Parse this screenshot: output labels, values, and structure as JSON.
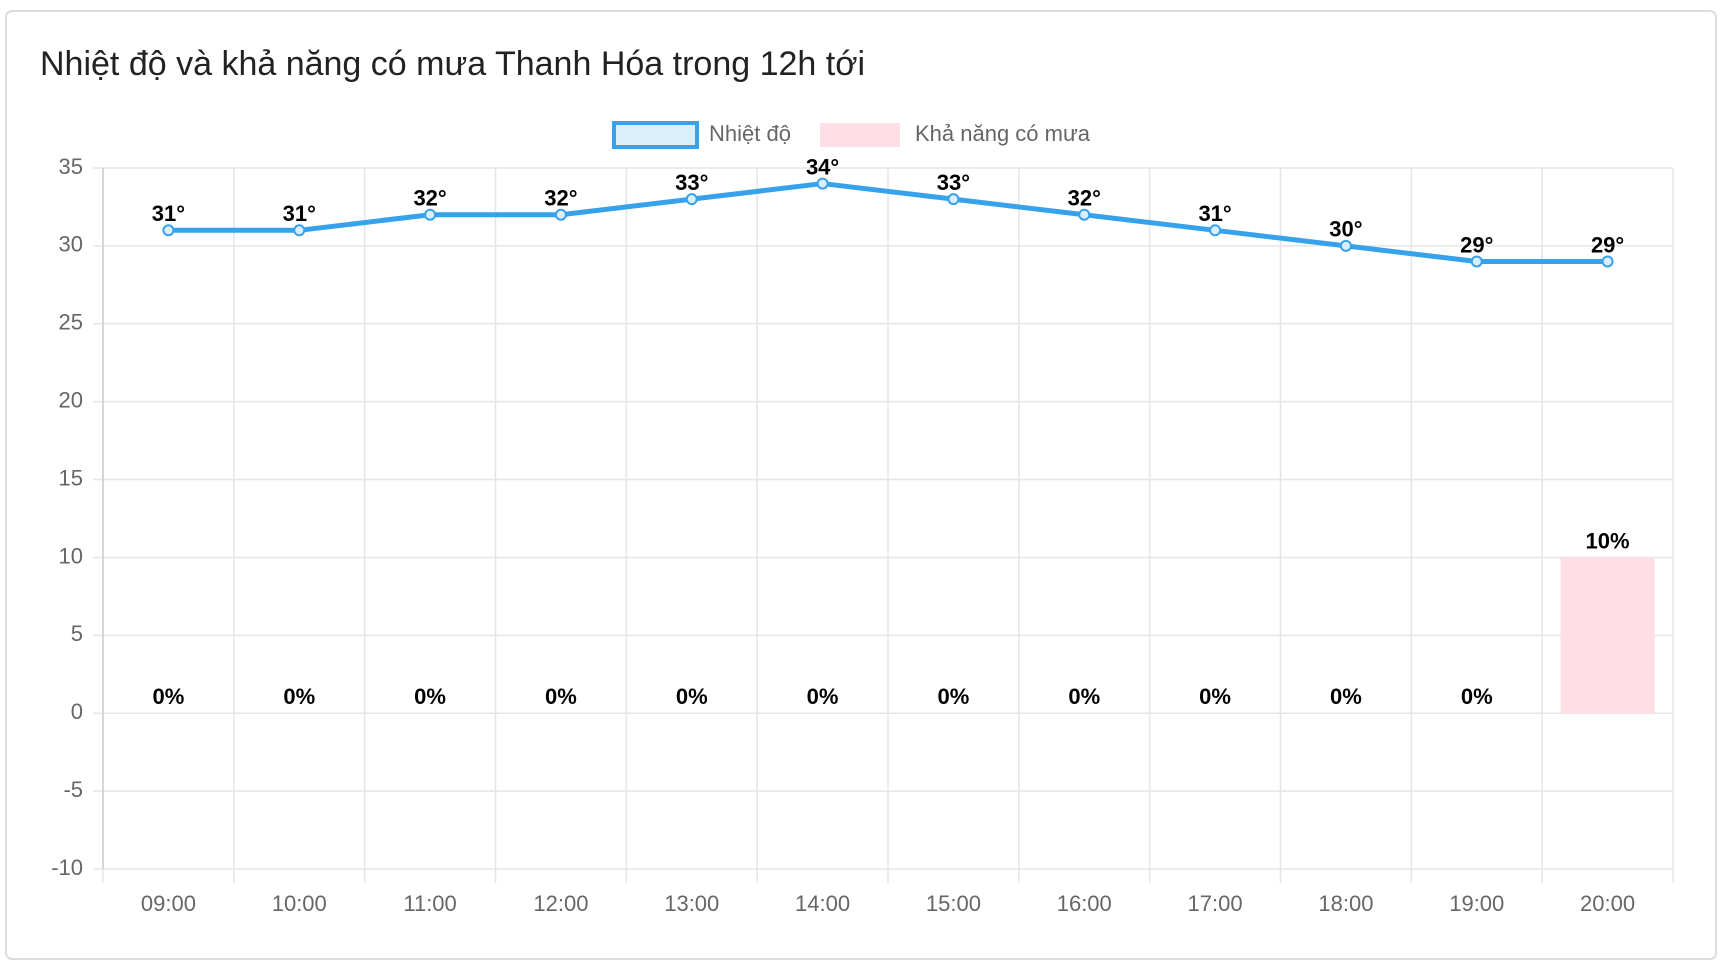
{
  "chart_data": {
    "type": "combo",
    "title": "Nhiệt độ và khả năng có mưa Thanh Hóa trong 12h tới",
    "categories": [
      "09:00",
      "10:00",
      "11:00",
      "12:00",
      "13:00",
      "14:00",
      "15:00",
      "16:00",
      "17:00",
      "18:00",
      "19:00",
      "20:00"
    ],
    "series": [
      {
        "name": "Nhiệt độ",
        "type": "line",
        "color": "#36a2eb",
        "values": [
          31,
          31,
          32,
          32,
          33,
          34,
          33,
          32,
          31,
          30,
          29,
          29
        ],
        "value_labels": [
          "31°",
          "31°",
          "32°",
          "32°",
          "33°",
          "34°",
          "33°",
          "32°",
          "31°",
          "30°",
          "29°",
          "29°"
        ]
      },
      {
        "name": "Khả năng có mưa",
        "type": "bar",
        "color": "#ffdfe5",
        "values": [
          0,
          0,
          0,
          0,
          0,
          0,
          0,
          0,
          0,
          0,
          0,
          10
        ],
        "value_labels": [
          "0%",
          "0%",
          "0%",
          "0%",
          "0%",
          "0%",
          "0%",
          "0%",
          "0%",
          "0%",
          "0%",
          "10%"
        ]
      }
    ],
    "ylim": [
      -10,
      35
    ],
    "yticks": [
      -10,
      -5,
      0,
      5,
      10,
      15,
      20,
      25,
      30,
      35
    ],
    "grid": true,
    "legend": "top"
  }
}
